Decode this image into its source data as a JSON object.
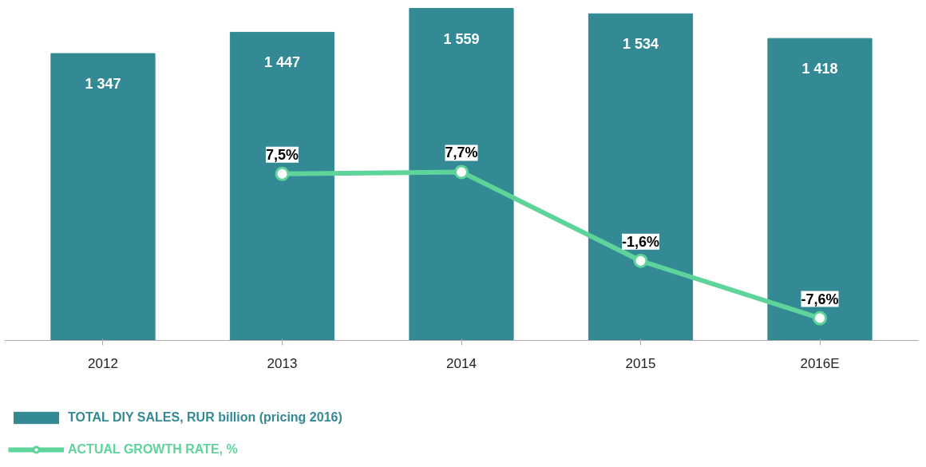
{
  "chart_data": {
    "type": "bar",
    "categories": [
      "2012",
      "2013",
      "2014",
      "2015",
      "2016E"
    ],
    "series": [
      {
        "name": "TOTAL DIY SALES, RUR billion (pricing 2016)",
        "color": "#338a94",
        "values": [
          1347,
          1447,
          1559,
          1534,
          1418
        ],
        "value_labels": [
          "1 347",
          "1 447",
          "1 559",
          "1 534",
          "1 418"
        ]
      },
      {
        "name": "ACTUAL GROWTH RATE, %",
        "type": "line",
        "axis": "y2",
        "color": "#5fd49a",
        "values": [
          null,
          7.5,
          7.7,
          -1.6,
          -7.6
        ],
        "value_labels": [
          null,
          "7,5%",
          "7,7%",
          "-1,6%",
          "-7,6%"
        ]
      }
    ],
    "tick_labels": "x",
    "grid": false,
    "legend": "bottom",
    "marker": "circle",
    "line_style": "solid"
  }
}
